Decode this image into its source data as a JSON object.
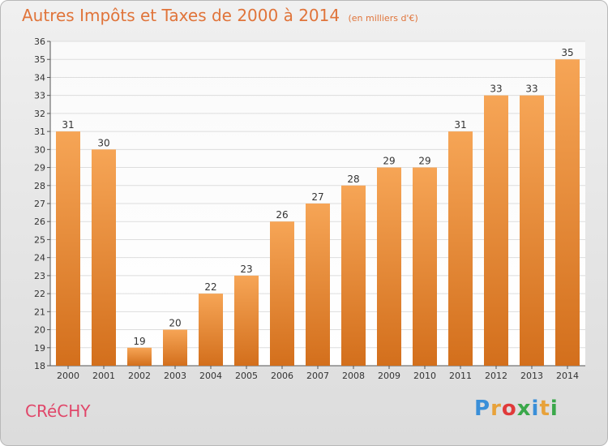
{
  "header": {
    "title": "Autres Impôts et Taxes de 2000 à 2014",
    "subtitle": "(en milliers d'€)"
  },
  "footer": {
    "commune": "CRéCHY",
    "logo_letters": [
      "P",
      "r",
      "o",
      "x",
      "i",
      "t",
      "i"
    ],
    "logo_colors": [
      "#3a8fd8",
      "#e8a23a",
      "#e03a3a",
      "#3aa84a",
      "#3a8fd8",
      "#e8a23a",
      "#3aa84a"
    ]
  },
  "colors": {
    "bar_top": "#f6a556",
    "bar_bottom": "#d36f1c",
    "title": "#e0743a",
    "commune": "#e0476a"
  },
  "chart_data": {
    "type": "bar",
    "title": "Autres Impôts et Taxes de 2000 à 2014",
    "subtitle": "(en milliers d'€)",
    "categories": [
      "2000",
      "2001",
      "2002",
      "2003",
      "2004",
      "2005",
      "2006",
      "2007",
      "2008",
      "2009",
      "2010",
      "2011",
      "2012",
      "2013",
      "2014"
    ],
    "values": [
      31,
      30,
      19,
      20,
      22,
      23,
      26,
      27,
      28,
      29,
      29,
      31,
      33,
      33,
      35
    ],
    "ylim": [
      18,
      36
    ],
    "yticks": [
      18,
      19,
      20,
      21,
      22,
      23,
      24,
      25,
      26,
      27,
      28,
      29,
      30,
      31,
      32,
      33,
      34,
      35,
      36
    ],
    "grid": true,
    "xlabel": "",
    "ylabel": ""
  }
}
